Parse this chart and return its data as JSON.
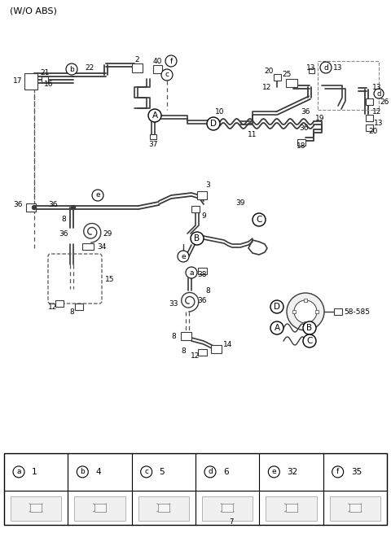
{
  "title": "(W/O ABS)",
  "fig_width": 4.8,
  "fig_height": 6.55,
  "dpi": 100,
  "bg": "#ffffff",
  "lc": "#3a3a3a",
  "tc": "#000000",
  "legend": [
    {
      "sym": "a",
      "num": "1"
    },
    {
      "sym": "b",
      "num": "4"
    },
    {
      "sym": "c",
      "num": "5"
    },
    {
      "sym": "d",
      "num": "6"
    },
    {
      "sym": "e",
      "num": "32"
    },
    {
      "sym": "f",
      "num": "35"
    }
  ]
}
